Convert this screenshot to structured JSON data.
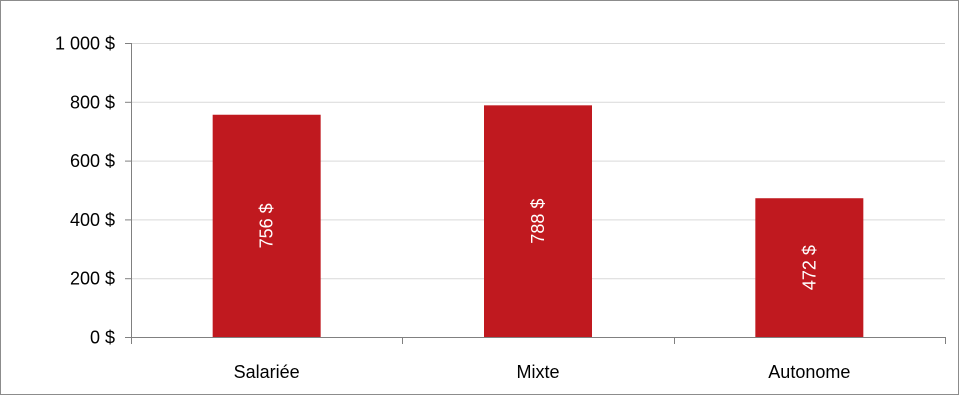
{
  "chart_data": {
    "type": "bar",
    "categories": [
      "Salariée",
      "Mixte",
      "Autonome"
    ],
    "values": [
      756,
      788,
      472
    ],
    "data_labels": [
      "756 $",
      "788 $",
      "472 $"
    ],
    "y_ticks": [
      0,
      200,
      400,
      600,
      800,
      1000
    ],
    "y_tick_labels": [
      "0 $",
      "200 $",
      "400 $",
      "600 $",
      "800 $",
      "1 000 $"
    ],
    "ylim": [
      0,
      1000
    ],
    "grid": true,
    "legend": "none",
    "colors": {
      "bar": "#c0191f",
      "grid": "#d9d9d9",
      "axis": "#808080"
    }
  }
}
